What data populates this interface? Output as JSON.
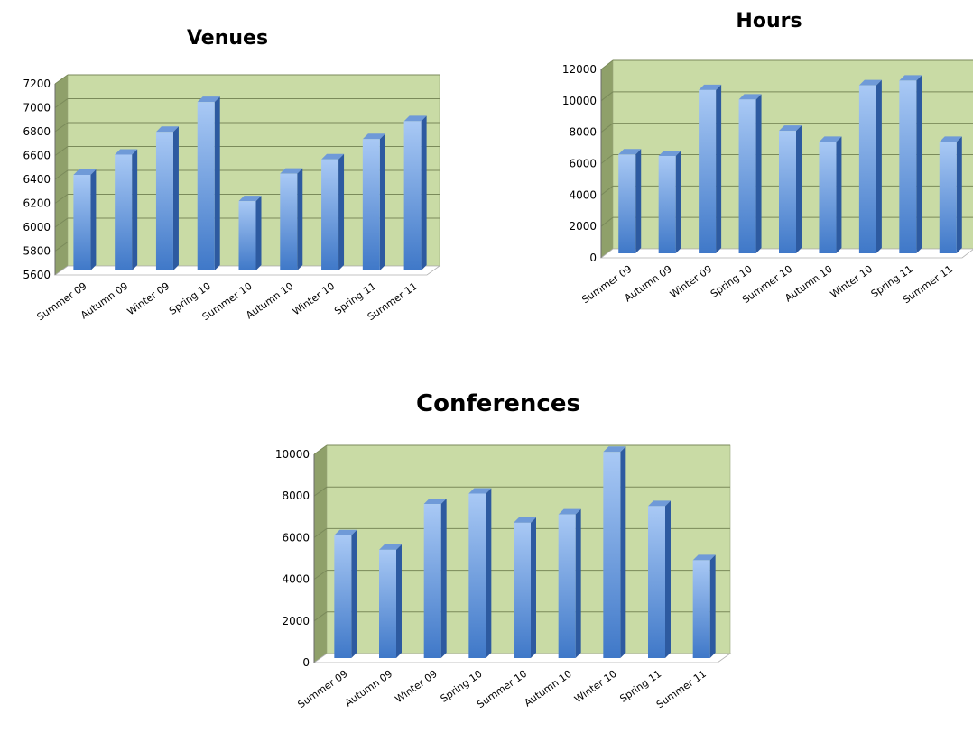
{
  "chart_data": [
    {
      "id": "venues",
      "type": "bar",
      "title": "Venues",
      "categories": [
        "Summer 09",
        "Autumn 09",
        "Winter 09",
        "Spring 10",
        "Summer 10",
        "Autumn 10",
        "Winter 10",
        "Spring 11",
        "Summer 11"
      ],
      "values": [
        6400,
        6570,
        6760,
        7010,
        6180,
        6410,
        6530,
        6700,
        6850
      ],
      "ylim": [
        5600,
        7200
      ],
      "yticks": [
        5600,
        5800,
        6000,
        6200,
        6400,
        6600,
        6800,
        7000,
        7200
      ],
      "xlabel": "",
      "ylabel": "",
      "grid": true,
      "legend": "none"
    },
    {
      "id": "hours",
      "type": "bar",
      "title": "Hours",
      "categories": [
        "Summer 09",
        "Autumn 09",
        "Winter 09",
        "Spring 10",
        "Summer 10",
        "Autumn 10",
        "Winter 10",
        "Spring 11",
        "Summer 11"
      ],
      "values": [
        6300,
        6200,
        10400,
        9800,
        7800,
        7100,
        10700,
        11000,
        7100
      ],
      "ylim": [
        0,
        12000
      ],
      "yticks": [
        0,
        2000,
        4000,
        6000,
        8000,
        10000,
        12000
      ],
      "xlabel": "",
      "ylabel": "",
      "grid": true,
      "legend": "none"
    },
    {
      "id": "conferences",
      "type": "bar",
      "title": "Conferences",
      "categories": [
        "Summer 09",
        "Autumn 09",
        "Winter 09",
        "Spring 10",
        "Summer 10",
        "Autumn 10",
        "Winter 10",
        "Spring 11",
        "Summer 11"
      ],
      "values": [
        5900,
        5200,
        7400,
        7900,
        6500,
        6900,
        9900,
        7300,
        4700
      ],
      "ylim": [
        0,
        10000
      ],
      "yticks": [
        0,
        2000,
        4000,
        6000,
        8000,
        10000
      ],
      "xlabel": "",
      "ylabel": "",
      "grid": true,
      "legend": "none"
    }
  ],
  "colors": {
    "plot_back": "#c9dba5",
    "plot_side": "#8fa06a",
    "floor": "#ffffff",
    "bar_light": "#a9c9f5",
    "bar_dark": "#3f78c8",
    "bar_side": "#2d5aa0",
    "bar_top": "#6f9ad8",
    "gridline": "#7a8a5a"
  }
}
